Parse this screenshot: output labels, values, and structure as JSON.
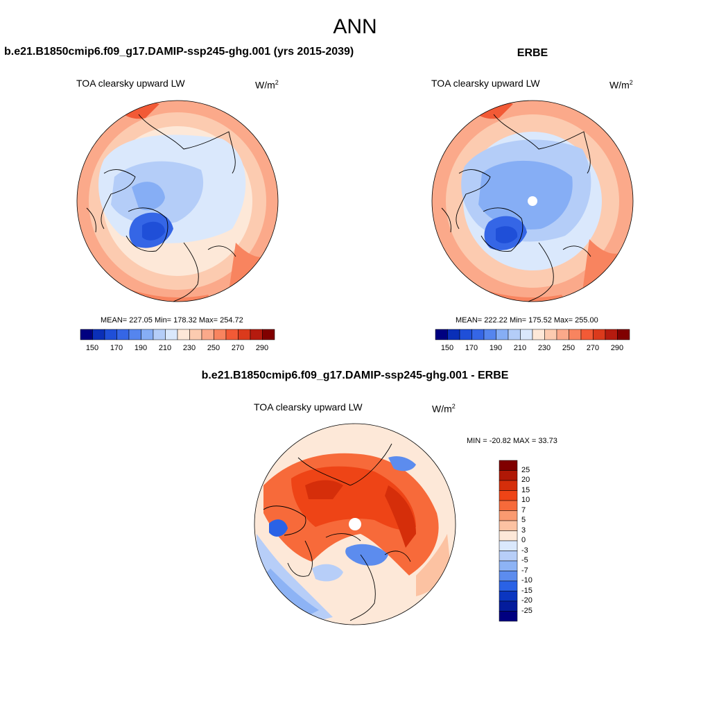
{
  "title": "ANN",
  "panels": [
    {
      "id": "model",
      "heading": "b.e21.B1850cmip6.f09_g17.DAMIP-ssp245-ghg.001 (yrs 2015-2039)",
      "variable": "TOA clearsky upward LW",
      "units_base": "W/m",
      "units_exp": "2",
      "stats": "MEAN= 227.05  Min= 178.32  Max= 254.72",
      "colorbar_labels": [
        "150",
        "170",
        "190",
        "210",
        "230",
        "250",
        "270",
        "290"
      ]
    },
    {
      "id": "obs",
      "heading": "ERBE",
      "variable": "TOA clearsky upward LW",
      "units_base": "W/m",
      "units_exp": "2",
      "stats": "MEAN= 222.22  Min= 175.52  Max= 255.00",
      "colorbar_labels": [
        "150",
        "170",
        "190",
        "210",
        "230",
        "250",
        "270",
        "290"
      ]
    },
    {
      "id": "diff",
      "heading": "b.e21.B1850cmip6.f09_g17.DAMIP-ssp245-ghg.001 - ERBE",
      "variable": "TOA clearsky upward LW",
      "units_base": "W/m",
      "units_exp": "2",
      "stats": "MIN = -20.82 MAX =  33.73",
      "colorbar_labels": [
        "25",
        "20",
        "15",
        "10",
        "7",
        "5",
        "3",
        "0",
        "-3",
        "-5",
        "-7",
        "-10",
        "-15",
        "-20",
        "-25"
      ]
    }
  ],
  "colors": {
    "abs_scale": [
      "#000080",
      "#0a2fb8",
      "#1f4fd8",
      "#3566e6",
      "#5585ee",
      "#86aef5",
      "#b4cdf8",
      "#dae8fc",
      "#fde8d8",
      "#fccbb0",
      "#fba98a",
      "#f8845f",
      "#f25a36",
      "#db3a1c",
      "#b51b0f",
      "#800000"
    ],
    "diff_scale": [
      "#800000",
      "#b01806",
      "#d52e0a",
      "#ee4416",
      "#f76a3a",
      "#fa9a70",
      "#fcc2a2",
      "#fde8d8",
      "#dae8fc",
      "#b7cef8",
      "#8db3f5",
      "#5c8cee",
      "#2a62e6",
      "#0b36c0",
      "#041c9c",
      "#000080"
    ]
  }
}
